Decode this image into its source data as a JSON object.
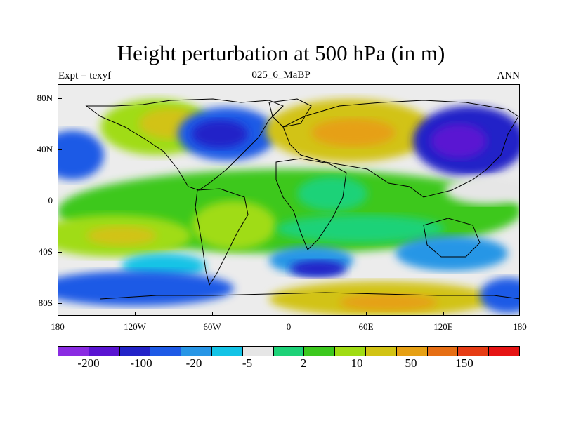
{
  "title": "Height perturbation at 500 hPa (in m)",
  "left_label": "Expt = texyf",
  "center_label": "025_6_MaBP",
  "right_label": "ANN",
  "lat_labels": [
    "80N",
    "40N",
    "0",
    "40S",
    "80S"
  ],
  "lon_labels": [
    "180",
    "120W",
    "60W",
    "0",
    "60E",
    "120E",
    "180"
  ],
  "colorbar": {
    "colors": [
      "#8a2be2",
      "#5a14d2",
      "#2323c8",
      "#1e5ae6",
      "#2896e6",
      "#14c3e6",
      "#e6e6e6",
      "#1ed278",
      "#3cc81e",
      "#a0dc14",
      "#d2c314",
      "#e6a014",
      "#e66e14",
      "#e63c14",
      "#e61414"
    ],
    "labels": [
      "-200",
      "-100",
      "-20",
      "-5",
      "2",
      "10",
      "50",
      "150"
    ]
  },
  "chart_data": {
    "type": "heatmap",
    "title": "Height perturbation at 500 hPa (in m)",
    "subtitle": "025_6_MaBP",
    "experiment": "Expt = texyf",
    "season": "ANN",
    "units": "m",
    "x_range": [
      -180,
      180
    ],
    "y_range": [
      -90,
      90
    ],
    "x_ticks": [
      "180",
      "120W",
      "60W",
      "0",
      "60E",
      "120E",
      "180"
    ],
    "y_ticks": [
      "80N",
      "40N",
      "0",
      "40S",
      "80S"
    ],
    "contour_levels": [
      -200,
      -100,
      -50,
      -20,
      -10,
      -5,
      -2,
      2,
      5,
      10,
      20,
      50,
      100,
      150,
      200
    ]
  }
}
